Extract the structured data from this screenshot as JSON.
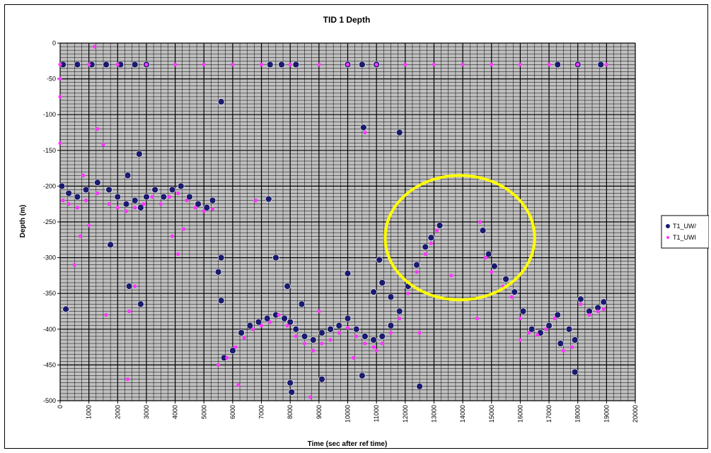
{
  "chart_data": {
    "type": "scatter",
    "title": "TID 1 Depth",
    "xlabel": "Time (sec after ref time)",
    "ylabel": "Depth (m)",
    "xlim": [
      0,
      20000
    ],
    "ylim": [
      -500,
      0
    ],
    "x_ticks": [
      0,
      1000,
      2000,
      3000,
      4000,
      5000,
      6000,
      7000,
      8000,
      9000,
      10000,
      11000,
      12000,
      13000,
      14000,
      15000,
      16000,
      17000,
      18000,
      19000,
      20000
    ],
    "y_ticks": [
      0,
      -50,
      -100,
      -150,
      -200,
      -250,
      -300,
      -350,
      -400,
      -450,
      -500
    ],
    "grid": true,
    "legend_position": "right",
    "series": [
      {
        "name": "T1_UW/",
        "color": "#1a1a6e",
        "marker": "large-circle",
        "points": [
          [
            100,
            -30
          ],
          [
            600,
            -30
          ],
          [
            1100,
            -30
          ],
          [
            1600,
            -30
          ],
          [
            2100,
            -30
          ],
          [
            2600,
            -30
          ],
          [
            3000,
            -30
          ],
          [
            7300,
            -30
          ],
          [
            7700,
            -30
          ],
          [
            8200,
            -30
          ],
          [
            10000,
            -30
          ],
          [
            10500,
            -30
          ],
          [
            11000,
            -30
          ],
          [
            17300,
            -30
          ],
          [
            18000,
            -30
          ],
          [
            18800,
            -30
          ],
          [
            60,
            -200
          ],
          [
            300,
            -210
          ],
          [
            600,
            -215
          ],
          [
            900,
            -205
          ],
          [
            1300,
            -195
          ],
          [
            1700,
            -205
          ],
          [
            2000,
            -215
          ],
          [
            2300,
            -225
          ],
          [
            2600,
            -220
          ],
          [
            2800,
            -230
          ],
          [
            3000,
            -215
          ],
          [
            3300,
            -205
          ],
          [
            3600,
            -215
          ],
          [
            3900,
            -205
          ],
          [
            4200,
            -200
          ],
          [
            4500,
            -215
          ],
          [
            4800,
            -225
          ],
          [
            5100,
            -230
          ],
          [
            5300,
            -220
          ],
          [
            2350,
            -185
          ],
          [
            2750,
            -155
          ],
          [
            1750,
            -282
          ],
          [
            2400,
            -340
          ],
          [
            2800,
            -365
          ],
          [
            200,
            -372
          ],
          [
            5600,
            -82
          ],
          [
            7250,
            -218
          ],
          [
            7500,
            -300
          ],
          [
            5600,
            -300
          ],
          [
            5500,
            -320
          ],
          [
            5600,
            -360
          ],
          [
            5700,
            -440
          ],
          [
            6000,
            -430
          ],
          [
            6300,
            -405
          ],
          [
            6600,
            -395
          ],
          [
            6900,
            -390
          ],
          [
            7200,
            -385
          ],
          [
            7500,
            -380
          ],
          [
            7800,
            -385
          ],
          [
            8000,
            -390
          ],
          [
            8200,
            -400
          ],
          [
            8500,
            -410
          ],
          [
            8800,
            -415
          ],
          [
            9100,
            -405
          ],
          [
            9400,
            -400
          ],
          [
            9700,
            -395
          ],
          [
            10000,
            -385
          ],
          [
            10300,
            -400
          ],
          [
            10600,
            -410
          ],
          [
            10900,
            -415
          ],
          [
            11200,
            -410
          ],
          [
            11500,
            -395
          ],
          [
            11800,
            -375
          ],
          [
            12100,
            -340
          ],
          [
            12400,
            -310
          ],
          [
            12700,
            -285
          ],
          [
            12900,
            -272
          ],
          [
            13200,
            -255
          ],
          [
            7900,
            -340
          ],
          [
            8400,
            -365
          ],
          [
            8000,
            -475
          ],
          [
            8050,
            -488
          ],
          [
            9100,
            -470
          ],
          [
            10000,
            -322
          ],
          [
            10550,
            -118
          ],
          [
            11100,
            -303
          ],
          [
            11200,
            -335
          ],
          [
            11500,
            -355
          ],
          [
            10900,
            -348
          ],
          [
            10500,
            -465
          ],
          [
            11800,
            -125
          ],
          [
            12500,
            -480
          ],
          [
            14700,
            -262
          ],
          [
            14900,
            -295
          ],
          [
            15100,
            -312
          ],
          [
            15500,
            -330
          ],
          [
            15800,
            -348
          ],
          [
            16100,
            -375
          ],
          [
            16400,
            -400
          ],
          [
            16700,
            -405
          ],
          [
            17000,
            -395
          ],
          [
            17300,
            -380
          ],
          [
            17400,
            -420
          ],
          [
            17700,
            -400
          ],
          [
            17900,
            -415
          ],
          [
            17900,
            -460
          ],
          [
            18100,
            -358
          ],
          [
            18400,
            -375
          ],
          [
            18700,
            -370
          ],
          [
            18900,
            -362
          ]
        ]
      },
      {
        "name": "T1_UWI",
        "color": "#ff33ff",
        "marker": "small-circle",
        "points": [
          [
            0,
            -30
          ],
          [
            1000,
            -30
          ],
          [
            2000,
            -30
          ],
          [
            3000,
            -30
          ],
          [
            4000,
            -30
          ],
          [
            5000,
            -30
          ],
          [
            6000,
            -30
          ],
          [
            7000,
            -30
          ],
          [
            8000,
            -30
          ],
          [
            9000,
            -30
          ],
          [
            10000,
            -30
          ],
          [
            11000,
            -30
          ],
          [
            12000,
            -30
          ],
          [
            13000,
            -30
          ],
          [
            14000,
            -30
          ],
          [
            15000,
            -30
          ],
          [
            16000,
            -30
          ],
          [
            17000,
            -30
          ],
          [
            18000,
            -30
          ],
          [
            19000,
            -30
          ],
          [
            1200,
            -5
          ],
          [
            0,
            -50
          ],
          [
            0,
            -75
          ],
          [
            0,
            -140
          ],
          [
            100,
            -220
          ],
          [
            300,
            -225
          ],
          [
            600,
            -230
          ],
          [
            900,
            -220
          ],
          [
            1300,
            -210
          ],
          [
            1700,
            -225
          ],
          [
            2000,
            -230
          ],
          [
            2300,
            -235
          ],
          [
            2600,
            -230
          ],
          [
            2900,
            -225
          ],
          [
            3200,
            -215
          ],
          [
            3500,
            -225
          ],
          [
            3800,
            -215
          ],
          [
            4100,
            -210
          ],
          [
            4400,
            -220
          ],
          [
            4700,
            -230
          ],
          [
            5000,
            -235
          ],
          [
            5300,
            -232
          ],
          [
            1300,
            -120
          ],
          [
            1500,
            -142
          ],
          [
            800,
            -185
          ],
          [
            700,
            -270
          ],
          [
            500,
            -310
          ],
          [
            1000,
            -255
          ],
          [
            1600,
            -380
          ],
          [
            2400,
            -375
          ],
          [
            2350,
            -470
          ],
          [
            2600,
            -340
          ],
          [
            3900,
            -270
          ],
          [
            4100,
            -295
          ],
          [
            4300,
            -260
          ],
          [
            5500,
            -450
          ],
          [
            5800,
            -440
          ],
          [
            6100,
            -425
          ],
          [
            6400,
            -412
          ],
          [
            6700,
            -400
          ],
          [
            7000,
            -395
          ],
          [
            7300,
            -390
          ],
          [
            7600,
            -380
          ],
          [
            7900,
            -395
          ],
          [
            8200,
            -410
          ],
          [
            8500,
            -420
          ],
          [
            8800,
            -430
          ],
          [
            9100,
            -420
          ],
          [
            9400,
            -415
          ],
          [
            9700,
            -405
          ],
          [
            10000,
            -398
          ],
          [
            10300,
            -410
          ],
          [
            10600,
            -420
          ],
          [
            10900,
            -425
          ],
          [
            11200,
            -420
          ],
          [
            11500,
            -405
          ],
          [
            11800,
            -385
          ],
          [
            12100,
            -350
          ],
          [
            12400,
            -320
          ],
          [
            12700,
            -295
          ],
          [
            12900,
            -280
          ],
          [
            13100,
            -262
          ],
          [
            6800,
            -220
          ],
          [
            9000,
            -375
          ],
          [
            10600,
            -125
          ],
          [
            11000,
            -430
          ],
          [
            10200,
            -440
          ],
          [
            12500,
            -405
          ],
          [
            13600,
            -325
          ],
          [
            14600,
            -250
          ],
          [
            14800,
            -300
          ],
          [
            15000,
            -320
          ],
          [
            15400,
            -340
          ],
          [
            15700,
            -355
          ],
          [
            16000,
            -385
          ],
          [
            16300,
            -405
          ],
          [
            16600,
            -408
          ],
          [
            16900,
            -400
          ],
          [
            17200,
            -385
          ],
          [
            17500,
            -430
          ],
          [
            17800,
            -425
          ],
          [
            18100,
            -365
          ],
          [
            18400,
            -380
          ],
          [
            18700,
            -375
          ],
          [
            18900,
            -372
          ],
          [
            14500,
            -385
          ],
          [
            16000,
            -415
          ],
          [
            6200,
            -478
          ],
          [
            8700,
            -495
          ]
        ]
      }
    ],
    "annotations": [
      {
        "type": "circle",
        "color": "#ffff00",
        "center": [
          13900,
          -272
        ],
        "radius_x": 2600,
        "radius_y": 87
      }
    ]
  }
}
